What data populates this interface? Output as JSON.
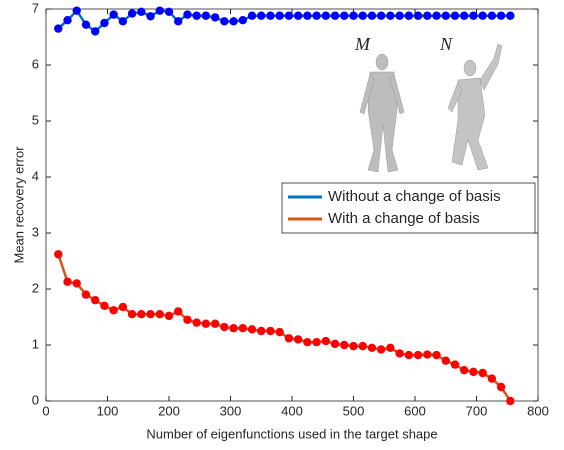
{
  "chart_data": {
    "type": "line",
    "x_label": "Number of eigenfunctions used in the target shape",
    "y_label": "Mean recovery error",
    "x": [
      20,
      35,
      50,
      65,
      80,
      95,
      110,
      125,
      140,
      155,
      170,
      185,
      200,
      215,
      230,
      245,
      260,
      275,
      290,
      305,
      320,
      335,
      350,
      365,
      380,
      395,
      410,
      425,
      440,
      455,
      470,
      485,
      500,
      515,
      530,
      545,
      560,
      575,
      590,
      605,
      620,
      635,
      650,
      665,
      680,
      695,
      710,
      725,
      740,
      755
    ],
    "series": [
      {
        "name": "Without a change of basis",
        "color": "#0072bd",
        "marker_color": "#0000ff",
        "values": [
          6.65,
          6.8,
          6.97,
          6.72,
          6.6,
          6.75,
          6.9,
          6.78,
          6.92,
          6.95,
          6.87,
          6.97,
          6.95,
          6.78,
          6.9,
          6.88,
          6.88,
          6.85,
          6.78,
          6.78,
          6.8,
          6.88,
          6.88,
          6.88,
          6.88,
          6.88,
          6.88,
          6.88,
          6.88,
          6.88,
          6.88,
          6.88,
          6.88,
          6.88,
          6.88,
          6.88,
          6.88,
          6.88,
          6.88,
          6.88,
          6.88,
          6.88,
          6.88,
          6.88,
          6.88,
          6.88,
          6.88,
          6.88,
          6.88,
          6.88
        ]
      },
      {
        "name": "With a change of basis",
        "color": "#d95319",
        "marker_color": "#ff0000",
        "values": [
          2.62,
          2.13,
          2.1,
          1.9,
          1.8,
          1.7,
          1.62,
          1.68,
          1.55,
          1.55,
          1.55,
          1.55,
          1.52,
          1.6,
          1.45,
          1.4,
          1.38,
          1.38,
          1.32,
          1.3,
          1.3,
          1.28,
          1.25,
          1.25,
          1.23,
          1.12,
          1.1,
          1.05,
          1.05,
          1.07,
          1.02,
          1.0,
          0.98,
          0.98,
          0.95,
          0.92,
          0.95,
          0.85,
          0.82,
          0.82,
          0.83,
          0.82,
          0.72,
          0.65,
          0.55,
          0.52,
          0.5,
          0.4,
          0.25,
          0.0
        ]
      }
    ],
    "annotations": [
      "M",
      "N"
    ],
    "xlim": [
      0,
      800
    ],
    "xticks": [
      0,
      100,
      200,
      300,
      400,
      500,
      600,
      700,
      800
    ],
    "ylim": [
      0,
      7
    ],
    "yticks": [
      0,
      1,
      2,
      3,
      4,
      5,
      6,
      7
    ]
  }
}
